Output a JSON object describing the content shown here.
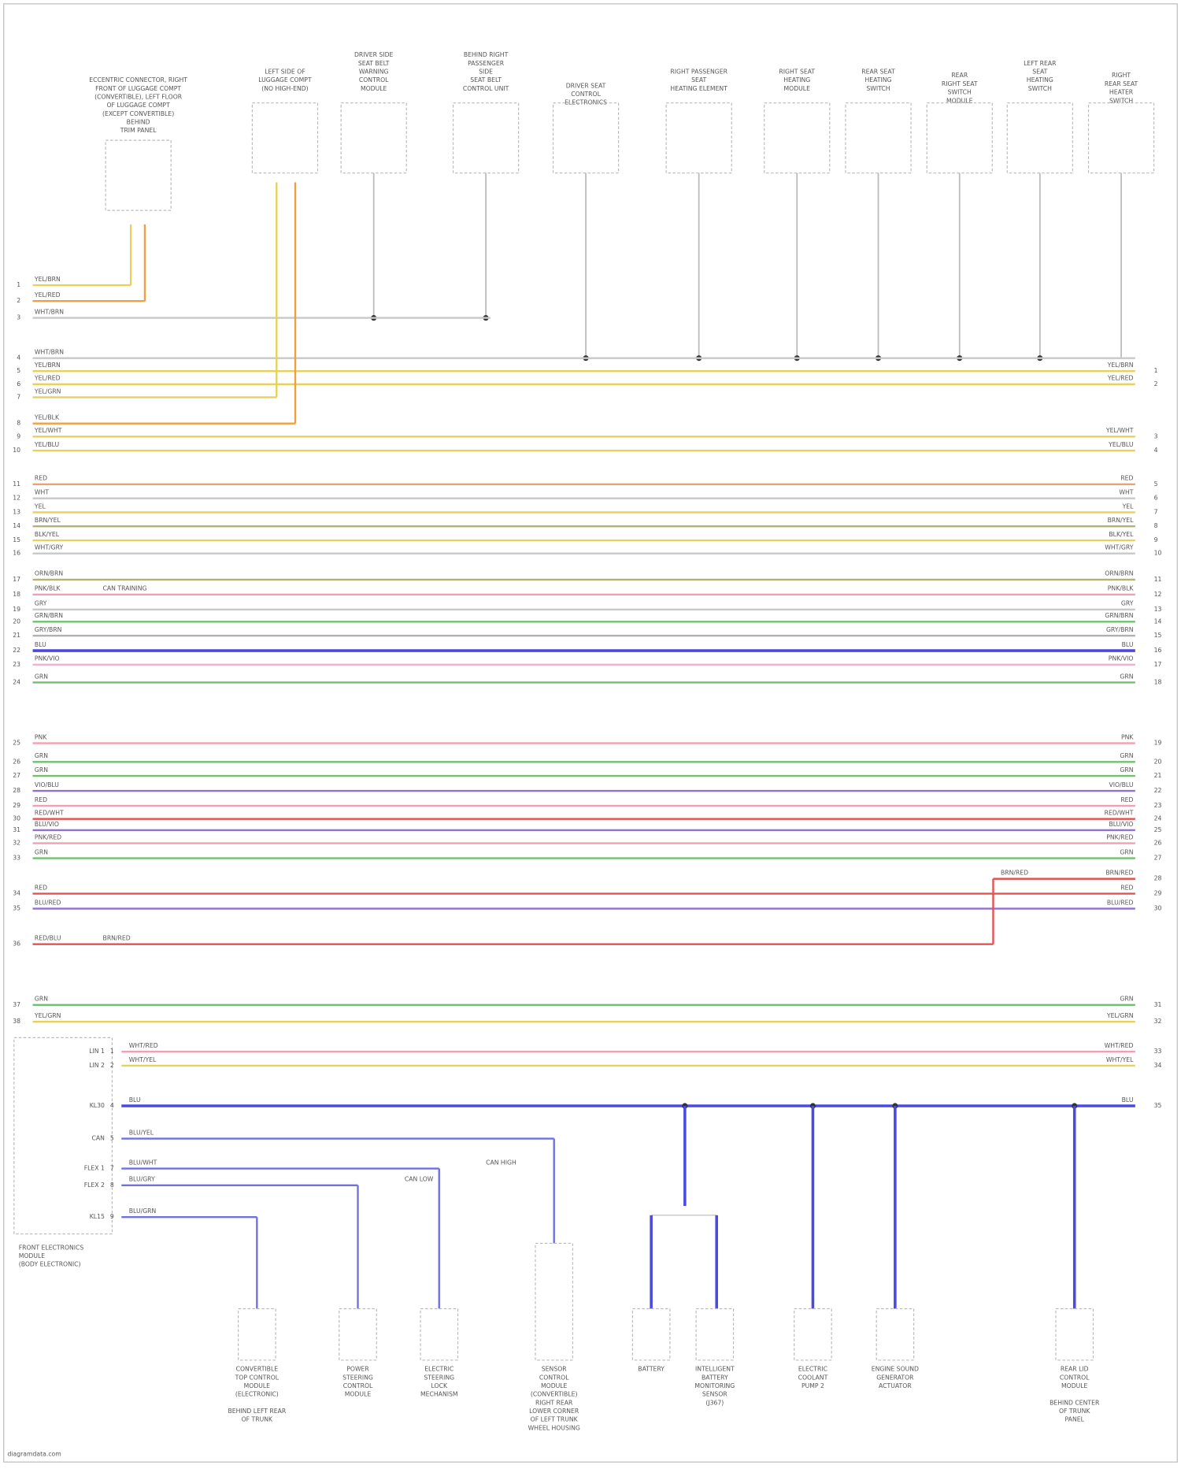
{
  "top_components": [
    {
      "lines": [
        "ECCENTRIC CONNECTOR, RIGHT",
        "FRONT OF LUGGAGE COMPT",
        "(CONVERTIBLE), LEFT FLOOR",
        "OF LUGGAGE COMPT",
        "(EXCEPT CONVERTIBLE)",
        "BEHIND",
        "TRIM PANEL"
      ]
    },
    {
      "lines": [
        "LEFT SIDE OF",
        "LUGGAGE COMPT",
        "(NO HIGH-END)"
      ]
    },
    {
      "lines": [
        "DRIVER SIDE",
        "SEAT BELT",
        "WARNING",
        "CONTROL",
        "MODULE"
      ]
    },
    {
      "lines": [
        "BEHIND RIGHT",
        "PASSENGER",
        "SIDE",
        "SEAT BELT",
        "CONTROL UNIT"
      ]
    },
    {
      "lines": [
        "DRIVER SEAT",
        "CONTROL",
        "ELECTRONICS"
      ]
    },
    {
      "lines": [
        "RIGHT PASSENGER",
        "SEAT",
        "HEATING ELEMENT"
      ]
    },
    {
      "lines": [
        "RIGHT SEAT",
        "HEATING",
        "MODULE"
      ]
    },
    {
      "lines": [
        "REAR SEAT",
        "HEATING",
        "SWITCH"
      ]
    },
    {
      "lines": [
        "REAR",
        "RIGHT SEAT",
        "SWITCH",
        "MODULE"
      ]
    },
    {
      "lines": [
        "LEFT REAR",
        "SEAT",
        "HEATING",
        "SWITCH"
      ]
    },
    {
      "lines": [
        "RIGHT",
        "REAR SEAT",
        "HEATER",
        "SWITCH"
      ]
    }
  ],
  "wires": [
    {
      "label": "YEL/BRN",
      "pin": "1",
      "color": "#e6d25a"
    },
    {
      "label": "YEL/RED",
      "pin": "2",
      "color": "#f0a040"
    },
    {
      "label": "WHT/BRN",
      "pin": "3",
      "color": "#c8c8c8"
    },
    {
      "label": "WHT/BRN",
      "pin": "4",
      "color": "#c8c8c8"
    },
    {
      "label": "YEL/BRN",
      "pin": "5",
      "color": "#e6d25a",
      "right_label": "YEL/BRN",
      "right_pin": "1"
    },
    {
      "label": "YEL/RED",
      "pin": "6",
      "color": "#e6d25a",
      "right_label": "YEL/RED",
      "right_pin": "2"
    },
    {
      "label": "YEL/GRN",
      "pin": "7",
      "color": "#e6d25a"
    },
    {
      "label": "YEL/BLK",
      "pin": "8",
      "color": "#f0a040"
    },
    {
      "label": "YEL/WHT",
      "pin": "9",
      "color": "#e6d25a",
      "right_label": "YEL/WHT",
      "right_pin": "3"
    },
    {
      "label": "YEL/BLU",
      "pin": "10",
      "color": "#e6d25a",
      "right_label": "YEL/BLU",
      "right_pin": "4"
    },
    {
      "label": "RED",
      "pin": "11",
      "color": "#f0a070",
      "right_label": "RED",
      "right_pin": "5"
    },
    {
      "label": "WHT",
      "pin": "12",
      "color": "#c8c8c8",
      "right_label": "WHT",
      "right_pin": "6"
    },
    {
      "label": "YEL",
      "pin": "13",
      "color": "#e6d25a",
      "right_label": "YEL",
      "right_pin": "7"
    },
    {
      "label": "BRN/YEL",
      "pin": "14",
      "color": "#b8b070",
      "right_label": "BRN/YEL",
      "right_pin": "8"
    },
    {
      "label": "BLK/YEL",
      "pin": "15",
      "color": "#e6d25a",
      "right_label": "BLK/YEL",
      "right_pin": "9"
    },
    {
      "label": "WHT/GRY",
      "pin": "16",
      "color": "#c8c8c8",
      "right_label": "WHT/GRY",
      "right_pin": "10"
    },
    {
      "label": "ORN/BRN",
      "pin": "17",
      "color": "#b8b070",
      "right_label": "ORN/BRN",
      "right_pin": "11"
    },
    {
      "label": "PNK/BLK",
      "pin": "18",
      "color": "#f0a0b0",
      "right_label": "PNK/BLK",
      "right_pin": "12",
      "note": "CAN TRAINING"
    },
    {
      "label": "GRY",
      "pin": "19",
      "color": "#c8c8c8",
      "right_label": "GRY",
      "right_pin": "13"
    },
    {
      "label": "GRN/BRN",
      "pin": "20",
      "color": "#70c070",
      "right_label": "GRN/BRN",
      "right_pin": "14"
    },
    {
      "label": "GRY/BRN",
      "pin": "21",
      "color": "#b0b0b0",
      "right_label": "GRY/BRN",
      "right_pin": "15"
    },
    {
      "label": "BLU",
      "pin": "22",
      "color": "#4a4ae0",
      "right_label": "BLU",
      "right_pin": "16"
    },
    {
      "label": "PNK/VIO",
      "pin": "23",
      "color": "#f0b0d0",
      "right_label": "PNK/VIO",
      "right_pin": "17"
    },
    {
      "label": "GRN",
      "pin": "24",
      "color": "#70c070",
      "right_label": "GRN",
      "right_pin": "18"
    },
    {
      "label": "PNK",
      "pin": "25",
      "color": "#f0a0b0",
      "right_label": "PNK",
      "right_pin": "19"
    },
    {
      "label": "GRN",
      "pin": "26",
      "color": "#70c070",
      "right_label": "GRN",
      "right_pin": "20"
    },
    {
      "label": "GRN",
      "pin": "27",
      "color": "#70c070",
      "right_label": "GRN",
      "right_pin": "21"
    },
    {
      "label": "VIO/BLU",
      "pin": "28",
      "color": "#9070d0",
      "right_label": "VIO/BLU",
      "right_pin": "22"
    },
    {
      "label": "RED",
      "pin": "29",
      "color": "#f0a0b0",
      "right_label": "RED",
      "right_pin": "23"
    },
    {
      "label": "RED/WHT",
      "pin": "30",
      "color": "#e85050",
      "right_label": "RED/WHT",
      "right_pin": "24"
    },
    {
      "label": "BLU/VIO",
      "pin": "31",
      "color": "#9070d0",
      "right_label": "BLU/VIO",
      "right_pin": "25"
    },
    {
      "label": "PNK/RED",
      "pin": "32",
      "color": "#f0a0b0",
      "right_label": "PNK/RED",
      "right_pin": "26"
    },
    {
      "label": "GRN",
      "pin": "33",
      "color": "#70c070",
      "right_label": "GRN",
      "right_pin": "27"
    },
    {
      "label": "BRN/RED",
      "color": "#e85050",
      "right_label": "BRN/RED",
      "right_pin": "28"
    },
    {
      "label": "RED",
      "pin": "34",
      "color": "#e85050",
      "right_label": "RED",
      "right_pin": "29"
    },
    {
      "label": "BLU/RED",
      "pin": "35",
      "color": "#9070d0",
      "right_label": "BLU/RED",
      "right_pin": "30"
    },
    {
      "label": "RED/BLU",
      "pin": "36",
      "color": "#e85050",
      "note": "BRN/RED"
    },
    {
      "label": "GRN",
      "pin": "37",
      "color": "#70c070",
      "right_label": "GRN",
      "right_pin": "31"
    },
    {
      "label": "YEL/GRN",
      "pin": "38",
      "color": "#e6d25a",
      "right_label": "YEL/GRN",
      "right_pin": "32"
    },
    {
      "label": "WHT/RED",
      "pin": "1",
      "color": "#f0a0b0",
      "right_label": "WHT/RED",
      "right_pin": "33"
    },
    {
      "label": "WHT/YEL",
      "pin": "2",
      "color": "#e6d25a",
      "right_label": "WHT/YEL",
      "right_pin": "34"
    },
    {
      "label": "BLU",
      "pin": "4",
      "color": "#4a4ae0",
      "right_label": "BLU",
      "right_pin": "35"
    },
    {
      "label": "BLU/YEL",
      "pin": "5",
      "color": "#7070e0"
    },
    {
      "label": "BLU/WHT",
      "pin": "7",
      "color": "#7070e0",
      "note": "CAN HIGH"
    },
    {
      "label": "BLU/GRY",
      "pin": "8",
      "color": "#7070e0",
      "note": "CAN LOW"
    },
    {
      "label": "BLU/GRN",
      "pin": "9",
      "color": "#7070e0"
    }
  ],
  "module": {
    "lines": [
      "FRONT ELECTRONICS",
      "MODULE",
      "(BODY ELECTRONIC)"
    ],
    "pins": [
      "LIN 1",
      "LIN 2",
      "KL30",
      "CAN",
      "FLEX 1",
      "FLEX 2",
      "KL15"
    ]
  },
  "bottom_components": [
    {
      "lines": [
        "CONVERTIBLE",
        "TOP CONTROL",
        "MODULE",
        "(ELECTRONIC)",
        "",
        "BEHIND LEFT REAR",
        "OF TRUNK"
      ]
    },
    {
      "lines": [
        "POWER",
        "STEERING",
        "CONTROL",
        "MODULE"
      ]
    },
    {
      "lines": [
        "ELECTRIC",
        "STEERING",
        "LOCK",
        "MECHANISM"
      ]
    },
    {
      "lines": [
        "SENSOR",
        "CONTROL",
        "MODULE",
        "(CONVERTIBLE)",
        "RIGHT REAR",
        "LOWER CORNER",
        "OF LEFT TRUNK",
        "WHEEL HOUSING"
      ]
    },
    {
      "lines": [
        "BATTERY"
      ]
    },
    {
      "lines": [
        "INTELLIGENT",
        "BATTERY",
        "MONITORING",
        "SENSOR",
        "(J367)"
      ]
    },
    {
      "lines": [
        "ELECTRIC",
        "COOLANT",
        "PUMP 2"
      ]
    },
    {
      "lines": [
        "ENGINE SOUND",
        "GENERATOR",
        "ACTUATOR"
      ]
    },
    {
      "lines": [
        "REAR LID",
        "CONTROL",
        "MODULE",
        "",
        "BEHIND CENTER",
        "OF TRUNK",
        "PANEL"
      ]
    }
  ],
  "footer": "diagramdata.com"
}
